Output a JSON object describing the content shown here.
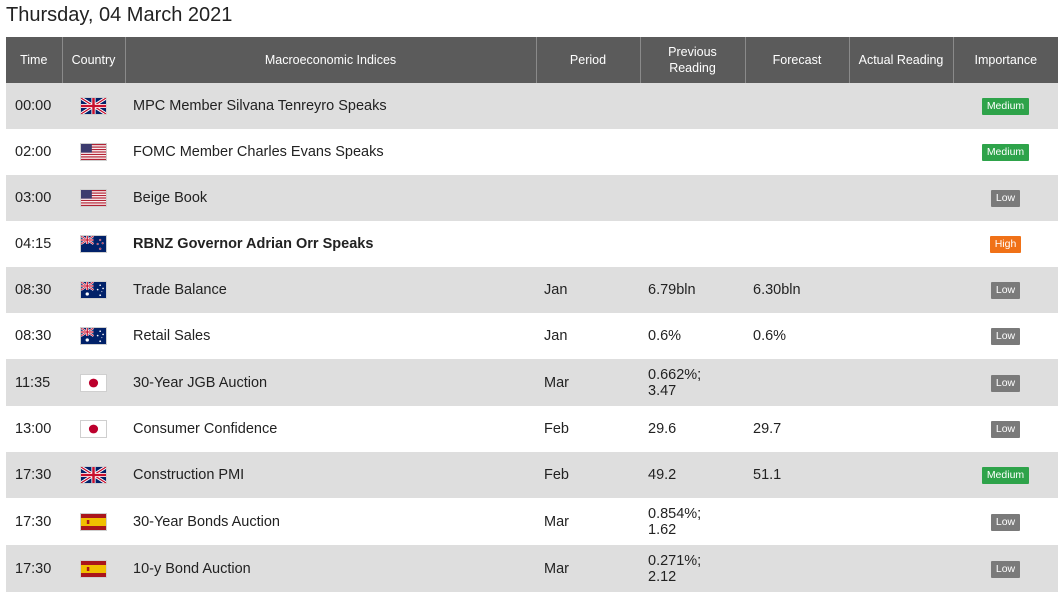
{
  "date_title": "Thursday, 04 March 2021",
  "headers": {
    "time": "Time",
    "country": "Country",
    "indices": "Macroeconomic Indices",
    "period": "Period",
    "previous_line1": "Previous",
    "previous_line2": "Reading",
    "forecast": "Forecast",
    "actual": "Actual Reading",
    "importance": "Importance"
  },
  "importance_colors": {
    "Medium": "#2ea34a",
    "Low": "#7a7a7a",
    "High": "#f07117"
  },
  "rows": [
    {
      "time": "00:00",
      "flag": "uk-flag-icon",
      "event": "MPC Member Silvana Tenreyro Speaks",
      "bold": false,
      "period": "",
      "previous": "",
      "forecast": "",
      "actual": "",
      "importance": "Medium"
    },
    {
      "time": "02:00",
      "flag": "us-flag-icon",
      "event": "FOMC Member Charles Evans Speaks",
      "bold": false,
      "period": "",
      "previous": "",
      "forecast": "",
      "actual": "",
      "importance": "Medium"
    },
    {
      "time": "03:00",
      "flag": "us-flag-icon",
      "event": "Beige Book",
      "bold": false,
      "period": "",
      "previous": "",
      "forecast": "",
      "actual": "",
      "importance": "Low"
    },
    {
      "time": "04:15",
      "flag": "nz-flag-icon",
      "event": "RBNZ Governor Adrian Orr Speaks",
      "bold": true,
      "period": "",
      "previous": "",
      "forecast": "",
      "actual": "",
      "importance": "High"
    },
    {
      "time": "08:30",
      "flag": "au-flag-icon",
      "event": "Trade Balance",
      "bold": false,
      "period": "Jan",
      "previous": "6.79bln",
      "forecast": "6.30bln",
      "actual": "",
      "importance": "Low"
    },
    {
      "time": "08:30",
      "flag": "au-flag-icon",
      "event": "Retail Sales",
      "bold": false,
      "period": "Jan",
      "previous": "0.6%",
      "forecast": "0.6%",
      "actual": "",
      "importance": "Low"
    },
    {
      "time": "11:35",
      "flag": "jp-flag-icon",
      "event": "30-Year JGB Auction",
      "bold": false,
      "period": "Mar",
      "previous": "0.662%;\n3.47",
      "forecast": "",
      "actual": "",
      "importance": "Low"
    },
    {
      "time": "13:00",
      "flag": "jp-flag-icon",
      "event": "Consumer Confidence",
      "bold": false,
      "period": "Feb",
      "previous": "29.6",
      "forecast": "29.7",
      "actual": "",
      "importance": "Low"
    },
    {
      "time": "17:30",
      "flag": "uk-flag-icon",
      "event": "Construction PMI",
      "bold": false,
      "period": "Feb",
      "previous": "49.2",
      "forecast": "51.1",
      "actual": "",
      "importance": "Medium"
    },
    {
      "time": "17:30",
      "flag": "es-flag-icon",
      "event": "30-Year Bonds Auction",
      "bold": false,
      "period": "Mar",
      "previous": "0.854%;\n1.62",
      "forecast": "",
      "actual": "",
      "importance": "Low"
    },
    {
      "time": "17:30",
      "flag": "es-flag-icon",
      "event": "10-y Bond Auction",
      "bold": false,
      "period": "Mar",
      "previous": "0.271%;\n2.12",
      "forecast": "",
      "actual": "",
      "importance": "Low"
    }
  ]
}
